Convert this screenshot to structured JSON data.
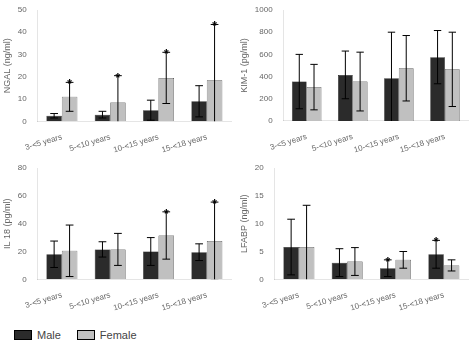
{
  "chart_data": [
    {
      "type": "bar",
      "ylabel": "NGAL (ng/ml)",
      "categories": [
        "3-<5 years",
        "5-<10 years",
        "10-<15 years",
        "15-<18 years"
      ],
      "series": [
        {
          "name": "Male",
          "color": "#2b2b2b",
          "values": [
            2.5,
            3.0,
            5.0,
            9.0
          ],
          "errors": [
            1.0,
            1.5,
            4.5,
            7.0
          ],
          "significant": [
            false,
            false,
            false,
            false
          ]
        },
        {
          "name": "Female",
          "color": "#c0c0c0",
          "values": [
            11.0,
            8.5,
            19.5,
            18.5
          ],
          "errors": [
            6.5,
            12.0,
            11.5,
            25.0
          ],
          "significant": [
            true,
            true,
            true,
            true
          ]
        }
      ],
      "ylim": [
        0,
        50
      ],
      "yticks": [
        0,
        10,
        20,
        30,
        40,
        50
      ],
      "grid": false,
      "significance_label": "*",
      "legend": "lower left"
    },
    {
      "type": "bar",
      "ylabel": "KIM-1 (pg/ml)",
      "categories": [
        "3-<5 years",
        "5-<10 years",
        "10-<15 years",
        "15-<18 years"
      ],
      "series": [
        {
          "name": "Male",
          "color": "#2b2b2b",
          "values": [
            355,
            415,
            385,
            575
          ],
          "errors": [
            245,
            215,
            415,
            240
          ],
          "significant": [
            false,
            false,
            false,
            false
          ]
        },
        {
          "name": "Female",
          "color": "#c0c0c0",
          "values": [
            305,
            355,
            475,
            465
          ],
          "errors": [
            205,
            265,
            295,
            335
          ],
          "significant": [
            false,
            false,
            false,
            false
          ]
        }
      ],
      "ylim": [
        0,
        1000
      ],
      "yticks": [
        0,
        200,
        400,
        600,
        800,
        1000
      ],
      "grid": false,
      "significance_label": "*"
    },
    {
      "type": "bar",
      "ylabel": "IL 18 (pg/ml)",
      "categories": [
        "3-<5 years",
        "5-<10 years",
        "10-<15 years",
        "15-<18 years"
      ],
      "series": [
        {
          "name": "Male",
          "color": "#2b2b2b",
          "values": [
            18.0,
            21.5,
            20.0,
            19.5
          ],
          "errors": [
            9.5,
            5.5,
            10.0,
            6.0
          ],
          "significant": [
            false,
            false,
            false,
            false
          ]
        },
        {
          "name": "Female",
          "color": "#c0c0c0",
          "values": [
            20.5,
            21.5,
            31.5,
            27.5
          ],
          "errors": [
            18.5,
            11.5,
            17.0,
            28.0
          ],
          "significant": [
            false,
            false,
            true,
            true
          ]
        }
      ],
      "ylim": [
        0,
        80
      ],
      "yticks": [
        0,
        20,
        40,
        60,
        80
      ],
      "grid": false,
      "significance_label": "*"
    },
    {
      "type": "bar",
      "ylabel": "LFABP (ng/ml)",
      "categories": [
        "3-<5 years",
        "5-<10 years",
        "10-<15 years",
        "15-<18 years"
      ],
      "series": [
        {
          "name": "Male",
          "color": "#2b2b2b",
          "values": [
            5.8,
            3.0,
            2.0,
            4.5
          ],
          "errors": [
            5.0,
            2.5,
            1.5,
            2.5
          ],
          "significant": [
            false,
            false,
            true,
            true
          ]
        },
        {
          "name": "Female",
          "color": "#c0c0c0",
          "values": [
            5.8,
            3.2,
            3.5,
            2.5
          ],
          "errors": [
            7.5,
            2.5,
            1.5,
            1.0
          ],
          "significant": [
            false,
            false,
            false,
            false
          ]
        }
      ],
      "ylim": [
        0,
        20
      ],
      "yticks": [
        0,
        5,
        10,
        15,
        20
      ],
      "grid": false,
      "significance_label": "*"
    }
  ]
}
